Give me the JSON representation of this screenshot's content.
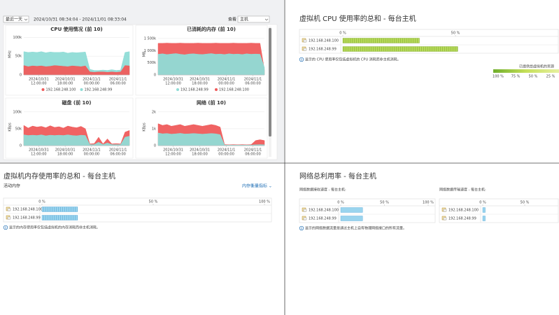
{
  "toolbar": {
    "range": "最近一天",
    "period": "2024/10/31 08:34:04 - 2024/11/01 08:33:04",
    "view_label": "查看",
    "view": "主机"
  },
  "chart_data": [
    {
      "type": "area",
      "title": "CPU 使用情况 (前 10)",
      "y_label": "MHz",
      "ylim": [
        0,
        110000
      ],
      "yticks": [
        0,
        {
          "value": 50000,
          "label": "50k"
        },
        {
          "value": 100000,
          "label": "100k"
        }
      ],
      "xlim": [
        0,
        24
      ],
      "xticks": [
        {
          "value": 3.4,
          "date": "2024/10/31",
          "time": "12:00:00"
        },
        {
          "value": 9.4,
          "date": "2024/10/31",
          "time": "18:00:00"
        },
        {
          "value": 15.4,
          "date": "2024/11/1",
          "time": "00:00:00"
        },
        {
          "value": 21.4,
          "date": "2024/11/1",
          "time": "06:00:00"
        }
      ],
      "x": [
        0,
        1,
        2,
        3,
        4,
        5,
        6,
        7,
        8,
        9,
        10,
        11,
        12,
        13,
        14,
        15,
        16,
        17,
        18,
        19,
        20,
        21,
        22,
        23,
        24
      ],
      "series": [
        {
          "name": "192.168.248.100",
          "color": "#ef5b5b",
          "values": [
            25000,
            22000,
            24000,
            23000,
            24000,
            22000,
            23000,
            25000,
            24000,
            23000,
            22000,
            24000,
            23000,
            22000,
            24000,
            8000,
            7000,
            8000,
            8000,
            7000,
            8000,
            7000,
            8000,
            25000,
            24000
          ]
        },
        {
          "name": "192.168.248.99",
          "color": "#8fdcd6",
          "values": [
            62000,
            60000,
            61000,
            60000,
            62000,
            59000,
            61000,
            60000,
            60000,
            61000,
            58000,
            60000,
            59000,
            60000,
            61000,
            15000,
            12000,
            12000,
            13000,
            12000,
            14000,
            12000,
            13000,
            60000,
            62000
          ]
        }
      ]
    },
    {
      "type": "area",
      "title": "已消耗的内存 (前 10)",
      "y_label": "MB",
      "ylim": [
        0,
        1700000
      ],
      "yticks": [
        0,
        {
          "value": 500000,
          "label": "500k"
        },
        {
          "value": 1000000,
          "label": "1 000k"
        },
        {
          "value": 1500000,
          "label": "1 500k"
        }
      ],
      "xlim": [
        0,
        24
      ],
      "xticks": [
        {
          "value": 3.4,
          "date": "2024/10/31",
          "time": "12:00:00"
        },
        {
          "value": 9.4,
          "date": "2024/10/31",
          "time": "18:00:00"
        },
        {
          "value": 15.4,
          "date": "2024/11/1",
          "time": "00:00:00"
        },
        {
          "value": 21.4,
          "date": "2024/11/1",
          "time": "06:00:00"
        }
      ],
      "x": [
        0,
        1,
        2,
        3,
        4,
        5,
        6,
        7,
        8,
        9,
        10,
        11,
        12,
        13,
        14,
        15,
        16,
        17,
        18,
        19,
        20,
        21,
        22,
        23,
        24
      ],
      "series": [
        {
          "name": "192.168.248.99",
          "color": "#8fdcd6",
          "values": [
            850000,
            870000,
            840000,
            860000,
            880000,
            850000,
            830000,
            860000,
            870000,
            850000,
            840000,
            860000,
            880000,
            850000,
            860000,
            840000,
            870000,
            850000,
            860000,
            840000,
            870000,
            850000,
            860000,
            850000,
            300000
          ]
        },
        {
          "name": "192.168.248.100",
          "color": "#ef5b5b",
          "values": [
            1300000,
            1300000,
            1310000,
            1300000,
            1300000,
            1310000,
            1300000,
            1300000,
            1300000,
            1310000,
            1300000,
            1300000,
            1300000,
            1310000,
            1300000,
            1300000,
            1300000,
            1310000,
            1300000,
            1300000,
            1300000,
            1310000,
            1300000,
            1300000,
            200000
          ]
        }
      ]
    },
    {
      "type": "area",
      "title": "磁盘 (前 10)",
      "y_label": "KBps",
      "ylim": [
        0,
        110000
      ],
      "yticks": [
        0,
        {
          "value": 50000,
          "label": "50k"
        },
        {
          "value": 100000,
          "label": "100k"
        }
      ],
      "xlim": [
        0,
        24
      ],
      "xticks": [
        {
          "value": 3.4,
          "date": "2024/10/31",
          "time": "12:00:00"
        },
        {
          "value": 9.4,
          "date": "2024/10/31",
          "time": "18:00:00"
        },
        {
          "value": 15.4,
          "date": "2024/11/1",
          "time": "00:00:00"
        },
        {
          "value": 21.4,
          "date": "2024/11/1",
          "time": "06:00:00"
        }
      ],
      "x": [
        0,
        1,
        2,
        3,
        4,
        5,
        6,
        7,
        8,
        9,
        10,
        11,
        12,
        13,
        14,
        15,
        16,
        17,
        18,
        19,
        20,
        21,
        22,
        23,
        24
      ],
      "series": [
        {
          "name": "192.168.248.100",
          "color": "#ef5b5b",
          "values": [
            60000,
            52000,
            58000,
            55000,
            57000,
            53000,
            59000,
            54000,
            56000,
            52000,
            58000,
            55000,
            53000,
            57000,
            50000,
            5000,
            6000,
            25000,
            5000,
            20000,
            5000,
            6000,
            5000,
            40000,
            45000
          ]
        },
        {
          "name": "192.168.248.99",
          "color": "#8fdcd6",
          "values": [
            32000,
            30000,
            31000,
            30000,
            32000,
            29000,
            31000,
            30000,
            31000,
            30000,
            32000,
            30000,
            29000,
            31000,
            30000,
            3000,
            3000,
            10000,
            3000,
            8000,
            3000,
            3000,
            3000,
            25000,
            28000
          ]
        }
      ]
    },
    {
      "type": "area",
      "title": "网络 (前 10)",
      "y_label": "KBps",
      "ylim": [
        0,
        2200
      ],
      "yticks": [
        0,
        {
          "value": 1000,
          "label": "1k"
        },
        {
          "value": 2000,
          "label": "2k"
        }
      ],
      "xlim": [
        0,
        24
      ],
      "xticks": [
        {
          "value": 3.4,
          "date": "2024/10/31",
          "time": "12:00:00"
        },
        {
          "value": 9.4,
          "date": "2024/10/31",
          "time": "18:00:00"
        },
        {
          "value": 15.4,
          "date": "2024/11/1",
          "time": "00:00:00"
        },
        {
          "value": 21.4,
          "date": "2024/11/1",
          "time": "06:00:00"
        }
      ],
      "x": [
        0,
        1,
        2,
        3,
        4,
        5,
        6,
        7,
        8,
        9,
        10,
        11,
        12,
        13,
        14,
        15,
        16,
        17,
        18,
        19,
        20,
        21,
        22,
        23,
        24
      ],
      "series": [
        {
          "name": "192.168.248.100",
          "color": "#ef5b5b",
          "values": [
            1300,
            1200,
            1250,
            1150,
            1200,
            1250,
            1150,
            1200,
            1250,
            1200,
            1150,
            1200,
            1250,
            1200,
            1100,
            60,
            50,
            60,
            50,
            60,
            50,
            60,
            300,
            350,
            300
          ]
        },
        {
          "name": "192.168.248.99",
          "color": "#8fdcd6",
          "values": [
            750,
            700,
            720,
            680,
            700,
            730,
            690,
            700,
            720,
            700,
            680,
            700,
            720,
            700,
            650,
            30,
            30,
            30,
            30,
            30,
            30,
            30,
            50,
            60,
            50
          ]
        }
      ]
    }
  ],
  "cpu_table": {
    "title": "虚拟机 CPU 使用率的总和 - 每台主机",
    "xlim": [
      0,
      100
    ],
    "ticks": [
      {
        "value": 0,
        "label": "0 %"
      },
      {
        "value": 50,
        "label": "50 %"
      }
    ],
    "rows": [
      {
        "host": "192.168.248.100",
        "value": 34
      },
      {
        "host": "192.168.248.99",
        "value": 51
      }
    ],
    "note": "显示的 CPU 使用率仅包括虚拟机的 CPU 消耗而非主机消耗。",
    "legend_title": "已提供给虚拟机的资源",
    "legend_ticks": [
      "100 %",
      "75 %",
      "50 %",
      "25 %"
    ]
  },
  "memory_table": {
    "title": "虚拟机内存使用率的总和 - 每台主机",
    "subtitle": "活动内存",
    "link": "内存衡量指标 ⌄",
    "xlim": [
      0,
      100
    ],
    "ticks": [
      {
        "value": 0,
        "label": "0 %"
      },
      {
        "value": 50,
        "label": "50 %"
      },
      {
        "value": 100,
        "label": "100 %"
      }
    ],
    "rows": [
      {
        "host": "192.168.248.100",
        "value": 16
      },
      {
        "host": "192.168.248.99",
        "value": 16
      }
    ],
    "note": "显示的内存使用率仅包括虚拟机的内存消耗而非主机消耗。"
  },
  "network": {
    "title": "网络总利用率 - 每台主机",
    "tables": [
      {
        "title": "网络数据接收速度 - 每台主机:",
        "xlim": [
          0,
          100
        ],
        "ticks": [
          {
            "value": 0,
            "label": "0 %"
          },
          {
            "value": 50,
            "label": "50 %"
          },
          {
            "value": 100,
            "label": "100 %"
          }
        ],
        "rows": [
          {
            "host": "192.168.248.100",
            "value": 25
          },
          {
            "host": "192.168.248.99",
            "value": 25
          }
        ]
      },
      {
        "title": "网络数据传输速度 - 每台主机:",
        "xlim": [
          0,
          100
        ],
        "ticks": [
          {
            "value": 0,
            "label": "0 %"
          },
          {
            "value": 50,
            "label": "50 %"
          }
        ],
        "rows": [
          {
            "host": "192.168.248.100",
            "value": 3
          },
          {
            "host": "192.168.248.99",
            "value": 3
          }
        ]
      }
    ],
    "note": "显示的网络数据流量是通过主机上自有物理网络接口的所有流量。"
  }
}
